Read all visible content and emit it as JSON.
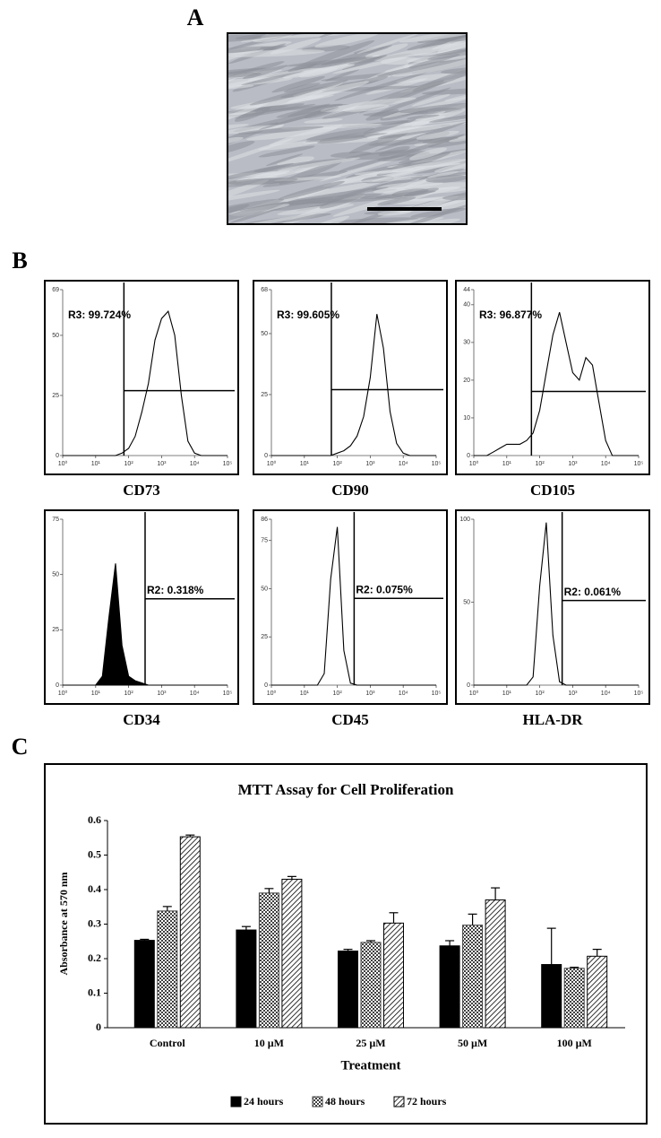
{
  "panel_labels": [
    "A",
    "B",
    "C"
  ],
  "chart_data": [
    {
      "type": "line",
      "title": "CD73",
      "annotation": "R3: 99.724%",
      "gate_x": 72,
      "gate_y": 27,
      "xscale": "log",
      "color": "#000000",
      "filled": false,
      "xlim": [
        1,
        100000
      ],
      "xticks": [
        {
          "value": 1,
          "label": "10⁰"
        },
        {
          "value": 10,
          "label": "10¹"
        },
        {
          "value": 100,
          "label": "10²"
        },
        {
          "value": 1000,
          "label": "10³"
        },
        {
          "value": 10000,
          "label": "10⁴"
        },
        {
          "value": 100000,
          "label": "10⁵"
        }
      ],
      "ylim": [
        0,
        69
      ],
      "yticks": [
        0,
        25,
        50,
        69
      ],
      "x": [
        1,
        1.6,
        2.5,
        4,
        6.3,
        10,
        16,
        25,
        40,
        63,
        100,
        158,
        251,
        398,
        631,
        1000,
        1585,
        2512,
        3981,
        6310,
        10000,
        15849,
        25119,
        39811,
        63096,
        100000
      ],
      "values": [
        0,
        0,
        0,
        0,
        0,
        0,
        0,
        0,
        0,
        1,
        3,
        8,
        18,
        30,
        48,
        57,
        60,
        50,
        25,
        6,
        1,
        0,
        0,
        0,
        0,
        0
      ]
    },
    {
      "type": "line",
      "title": "CD90",
      "annotation": "R3: 99.605%",
      "gate_x": 66,
      "gate_y": 27,
      "xscale": "log",
      "color": "#000000",
      "filled": false,
      "xlim": [
        1,
        100000
      ],
      "xticks": [
        {
          "value": 1,
          "label": "10⁰"
        },
        {
          "value": 10,
          "label": "10¹"
        },
        {
          "value": 100,
          "label": "10²"
        },
        {
          "value": 1000,
          "label": "10³"
        },
        {
          "value": 10000,
          "label": "10⁴"
        },
        {
          "value": 100000,
          "label": "10⁵"
        }
      ],
      "ylim": [
        0,
        68
      ],
      "yticks": [
        0,
        25,
        50,
        68
      ],
      "x": [
        1,
        1.6,
        2.5,
        4,
        6.3,
        10,
        16,
        25,
        40,
        63,
        100,
        158,
        251,
        398,
        631,
        1000,
        1585,
        2512,
        3981,
        6310,
        10000,
        15849,
        25119,
        39811,
        63096,
        100000
      ],
      "values": [
        0,
        0,
        0,
        0,
        0,
        0,
        0,
        0,
        0,
        0,
        1,
        2,
        4,
        8,
        16,
        32,
        58,
        44,
        18,
        5,
        1,
        0,
        0,
        0,
        0,
        0
      ]
    },
    {
      "type": "line",
      "title": "CD105",
      "annotation": "R3: 96.877%",
      "gate_x": 56,
      "gate_y": 17,
      "xscale": "log",
      "color": "#000000",
      "filled": false,
      "xlim": [
        1,
        100000
      ],
      "xticks": [
        {
          "value": 1,
          "label": "10⁰"
        },
        {
          "value": 10,
          "label": "10¹"
        },
        {
          "value": 100,
          "label": "10²"
        },
        {
          "value": 1000,
          "label": "10³"
        },
        {
          "value": 10000,
          "label": "10⁴"
        },
        {
          "value": 100000,
          "label": "10⁵"
        }
      ],
      "ylim": [
        0,
        44
      ],
      "yticks": [
        0,
        10,
        20,
        30,
        40,
        44
      ],
      "x": [
        1,
        1.6,
        2.5,
        4,
        6.3,
        10,
        16,
        25,
        40,
        63,
        100,
        158,
        251,
        398,
        631,
        1000,
        1585,
        2512,
        3981,
        6310,
        10000,
        15849,
        25119,
        39811,
        63096,
        100000
      ],
      "values": [
        0,
        0,
        0,
        1,
        2,
        3,
        3,
        3,
        4,
        6,
        12,
        22,
        32,
        38,
        30,
        22,
        20,
        26,
        24,
        14,
        4,
        0,
        0,
        0,
        0,
        0
      ]
    },
    {
      "type": "line",
      "title": "CD34",
      "annotation": "R2: 0.318%",
      "gate_x": 316,
      "gate_y": 39,
      "xscale": "log",
      "color": "#000000",
      "filled": true,
      "xlim": [
        1,
        100000
      ],
      "xticks": [
        {
          "value": 1,
          "label": "10⁰"
        },
        {
          "value": 10,
          "label": "10¹"
        },
        {
          "value": 100,
          "label": "10²"
        },
        {
          "value": 1000,
          "label": "10³"
        },
        {
          "value": 10000,
          "label": "10⁴"
        },
        {
          "value": 100000,
          "label": "10⁵"
        }
      ],
      "ylim": [
        0,
        75
      ],
      "yticks": [
        0,
        25,
        50,
        75
      ],
      "x": [
        1,
        1.6,
        2.5,
        4,
        6.3,
        10,
        16,
        25,
        40,
        63,
        100,
        158,
        251,
        398,
        631,
        1000,
        1585,
        2512,
        3981,
        6310,
        10000,
        15849,
        25119,
        39811,
        63096,
        100000
      ],
      "values": [
        0,
        0,
        0,
        0,
        0,
        0,
        4,
        30,
        55,
        18,
        4,
        2,
        1,
        0,
        0,
        0,
        0,
        0,
        0,
        0,
        0,
        0,
        0,
        0,
        0,
        0
      ]
    },
    {
      "type": "line",
      "title": "CD45",
      "annotation": "R2: 0.075%",
      "gate_x": 324,
      "gate_y": 45,
      "xscale": "log",
      "color": "#000000",
      "filled": false,
      "xlim": [
        1,
        100000
      ],
      "xticks": [
        {
          "value": 1,
          "label": "10⁰"
        },
        {
          "value": 10,
          "label": "10¹"
        },
        {
          "value": 100,
          "label": "10²"
        },
        {
          "value": 1000,
          "label": "10³"
        },
        {
          "value": 10000,
          "label": "10⁴"
        },
        {
          "value": 100000,
          "label": "10⁵"
        }
      ],
      "ylim": [
        0,
        86
      ],
      "yticks": [
        0,
        25,
        50,
        75,
        86
      ],
      "x": [
        1,
        1.6,
        2.5,
        4,
        6.3,
        10,
        16,
        25,
        40,
        63,
        100,
        158,
        251,
        398,
        631,
        1000,
        1585,
        2512,
        3981,
        6310,
        10000,
        15849,
        25119,
        39811,
        63096,
        100000
      ],
      "values": [
        0,
        0,
        0,
        0,
        0,
        0,
        0,
        0,
        6,
        55,
        82,
        18,
        1,
        0,
        0,
        0,
        0,
        0,
        0,
        0,
        0,
        0,
        0,
        0,
        0,
        0
      ]
    },
    {
      "type": "line",
      "title": "HLA-DR",
      "annotation": "R2: 0.061%",
      "gate_x": 479,
      "gate_y": 51,
      "xscale": "log",
      "color": "#000000",
      "filled": false,
      "xlim": [
        1,
        100000
      ],
      "xticks": [
        {
          "value": 1,
          "label": "10⁰"
        },
        {
          "value": 10,
          "label": "10¹"
        },
        {
          "value": 100,
          "label": "10²"
        },
        {
          "value": 1000,
          "label": "10³"
        },
        {
          "value": 10000,
          "label": "10⁴"
        },
        {
          "value": 100000,
          "label": "10⁵"
        }
      ],
      "ylim": [
        0,
        100
      ],
      "yticks": [
        0,
        50,
        100
      ],
      "x": [
        1,
        1.6,
        2.5,
        4,
        6.3,
        10,
        16,
        25,
        40,
        63,
        100,
        158,
        251,
        398,
        631,
        1000,
        1585,
        2512,
        3981,
        6310,
        10000,
        15849,
        25119,
        39811,
        63096,
        100000
      ],
      "values": [
        0,
        0,
        0,
        0,
        0,
        0,
        0,
        0,
        0,
        5,
        60,
        98,
        30,
        2,
        0,
        0,
        0,
        0,
        0,
        0,
        0,
        0,
        0,
        0,
        0,
        0
      ]
    },
    {
      "type": "bar",
      "title": "MTT Assay for Cell Proliferation",
      "xlabel": "Treatment",
      "ylabel": "Absorbance at 570 nm",
      "categories": [
        "Control",
        "10 µM",
        "25 µM",
        "50 µM",
        "100 µM"
      ],
      "ylim": [
        0,
        0.6
      ],
      "yticks": [
        0,
        0.1,
        0.2,
        0.3,
        0.4,
        0.5,
        0.6
      ],
      "series": [
        {
          "name": "24 hours",
          "color": "#000000",
          "pattern": "solid",
          "values": [
            0.253,
            0.283,
            0.222,
            0.237,
            0.183
          ],
          "errors": [
            0.003,
            0.01,
            0.005,
            0.015,
            0.105
          ]
        },
        {
          "name": "48 hours",
          "color": "#404040",
          "pattern": "checker",
          "values": [
            0.338,
            0.39,
            0.247,
            0.297,
            0.172
          ],
          "errors": [
            0.013,
            0.013,
            0.005,
            0.032,
            0.003
          ]
        },
        {
          "name": "72 hours",
          "color": "#000000",
          "pattern": "hatch",
          "values": [
            0.553,
            0.43,
            0.303,
            0.37,
            0.207
          ],
          "errors": [
            0.005,
            0.008,
            0.03,
            0.035,
            0.02
          ]
        }
      ]
    }
  ]
}
